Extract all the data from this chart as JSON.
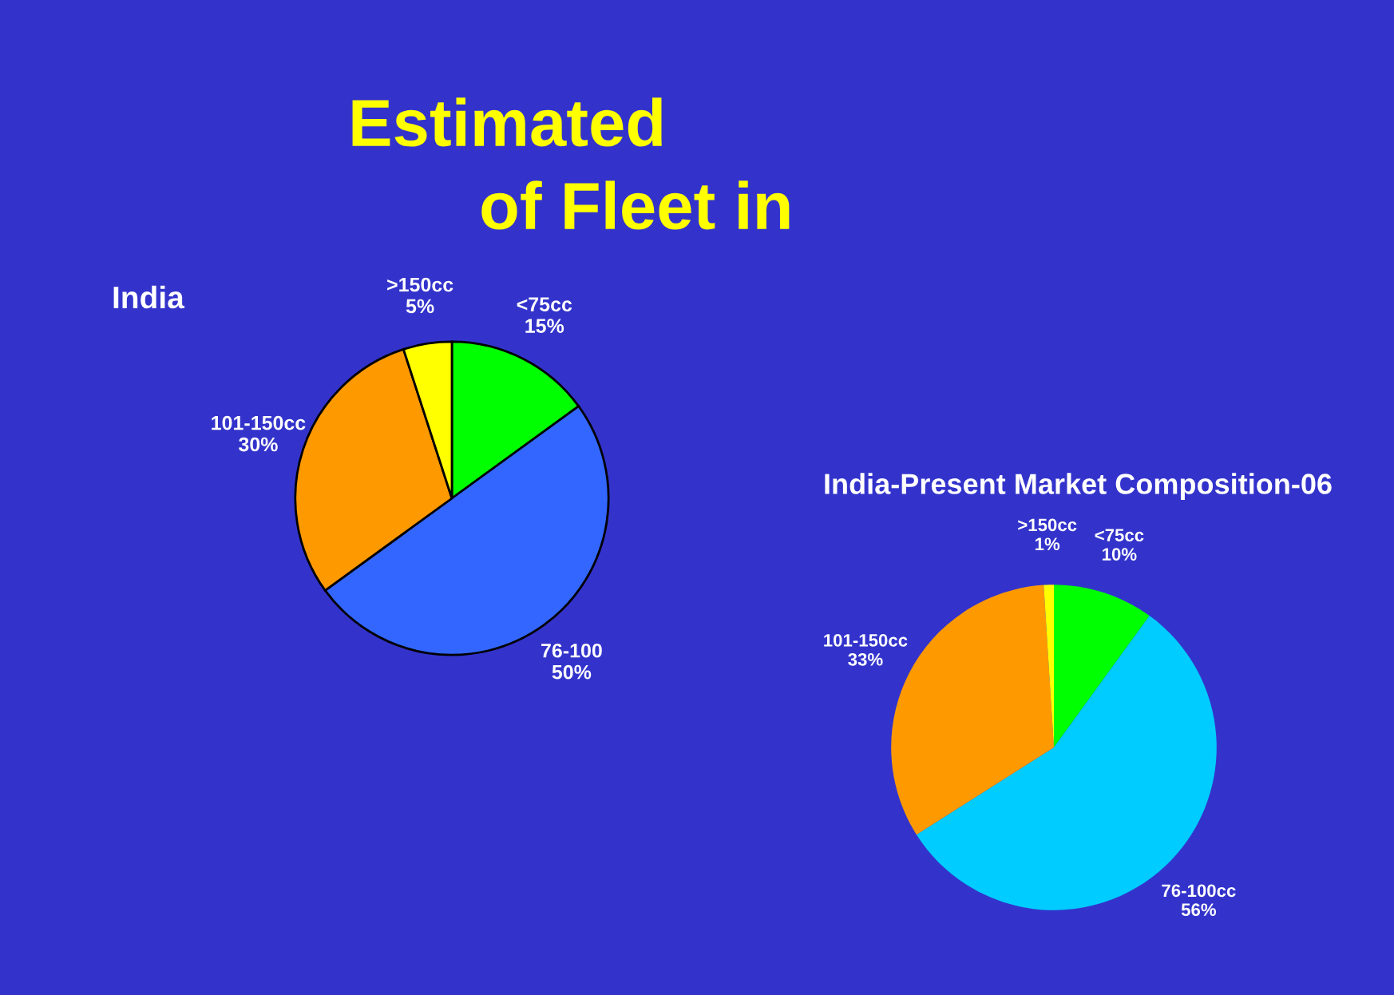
{
  "chart_data": [
    {
      "type": "pie",
      "title": "India",
      "annotations": [
        "Estimated",
        "of Fleet in"
      ],
      "categories": [
        "<75cc",
        "76-100",
        "101-150cc",
        ">150cc"
      ],
      "values": [
        15,
        50,
        30,
        5
      ],
      "value_labels": [
        "15%",
        "50%",
        "30%",
        "5%"
      ],
      "colors": [
        "#00ff00",
        "#3366ff",
        "#ff9900",
        "#ffff00"
      ],
      "legend": false
    },
    {
      "type": "pie",
      "title": "India-Present Market Composition-06",
      "categories": [
        "<75cc",
        "76-100cc",
        "101-150cc",
        ">150cc"
      ],
      "values": [
        10,
        56,
        33,
        1
      ],
      "value_labels": [
        "10%",
        "56%",
        "33%",
        "1%"
      ],
      "colors": [
        "#00ff00",
        "#00ccff",
        "#ff9900",
        "#ffff00"
      ],
      "legend": false
    }
  ]
}
